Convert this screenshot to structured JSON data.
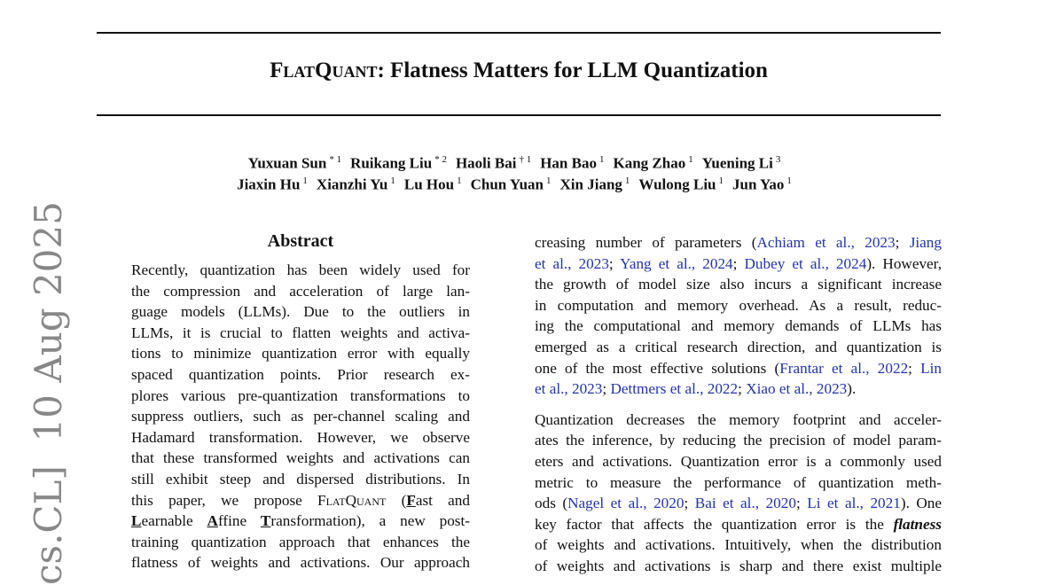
{
  "title": {
    "smallcaps": "FlatQuant",
    "rest": ": Flatness Matters for LLM Quantization"
  },
  "authors": {
    "row1": [
      {
        "name": "Yuxuan Sun",
        "mark": "* 1"
      },
      {
        "name": "Ruikang Liu",
        "mark": "* 2"
      },
      {
        "name": "Haoli Bai",
        "mark": "† 1"
      },
      {
        "name": "Han Bao",
        "mark": "1"
      },
      {
        "name": "Kang Zhao",
        "mark": "1"
      },
      {
        "name": "Yuening Li",
        "mark": "3"
      }
    ],
    "row2": [
      {
        "name": "Jiaxin Hu",
        "mark": "1"
      },
      {
        "name": "Xianzhi Yu",
        "mark": "1"
      },
      {
        "name": "Lu Hou",
        "mark": "1"
      },
      {
        "name": "Chun Yuan",
        "mark": "1"
      },
      {
        "name": "Xin Jiang",
        "mark": "1"
      },
      {
        "name": "Wulong Liu",
        "mark": "1"
      },
      {
        "name": "Jun Yao",
        "mark": "1"
      }
    ]
  },
  "abstract_heading": "Abstract",
  "arxiv_stamp": "cs.CL]  10 Aug 2025",
  "colors": {
    "citation": "#2233aa",
    "stamp": "#888888"
  },
  "left_column": [
    [
      {
        "t": "Recently, quantization has been widely used for"
      }
    ],
    [
      {
        "t": "the compression and acceleration of large lan-"
      }
    ],
    [
      {
        "t": "guage models (LLMs).  Due to the outliers in"
      }
    ],
    [
      {
        "t": "LLMs, it is crucial to flatten weights and activa-"
      }
    ],
    [
      {
        "t": "tions to minimize quantization error with equally"
      }
    ],
    [
      {
        "t": "spaced quantization points.  Prior research ex-"
      }
    ],
    [
      {
        "t": "plores various pre-quantization transformations to"
      }
    ],
    [
      {
        "t": "suppress outliers, such as per-channel scaling and"
      }
    ],
    [
      {
        "t": "Hadamard transformation. However, we observe"
      }
    ],
    [
      {
        "t": "that these transformed weights and activations can"
      }
    ],
    [
      {
        "t": "still exhibit steep and dispersed distributions. In"
      }
    ],
    [
      {
        "t": "this paper, we propose "
      },
      {
        "t": "FlatQuant",
        "s": "sc"
      },
      {
        "t": " ("
      },
      {
        "t": "F",
        "s": "bu"
      },
      {
        "t": "ast and"
      }
    ],
    [
      {
        "t": "L",
        "s": "bu"
      },
      {
        "t": "earnable "
      },
      {
        "t": "A",
        "s": "bu"
      },
      {
        "t": "ffine "
      },
      {
        "t": "T",
        "s": "bu"
      },
      {
        "t": "ransformation), a new post-"
      }
    ],
    [
      {
        "t": "training quantization approach that enhances the"
      }
    ],
    [
      {
        "t": "flatness of weights and activations. Our approach"
      }
    ]
  ],
  "right_column": [
    [
      {
        "t": "creasing number of parameters ("
      },
      {
        "t": "Achiam et al., 2023",
        "s": "cite"
      },
      {
        "t": "; "
      },
      {
        "t": "Jiang",
        "s": "cite"
      }
    ],
    [
      {
        "t": "et al., 2023",
        "s": "cite"
      },
      {
        "t": "; "
      },
      {
        "t": "Yang et al., 2024",
        "s": "cite"
      },
      {
        "t": "; "
      },
      {
        "t": "Dubey et al., 2024",
        "s": "cite"
      },
      {
        "t": "). However,"
      }
    ],
    [
      {
        "t": "the growth of model size also incurs a significant increase"
      }
    ],
    [
      {
        "t": "in computation and memory overhead. As a result, reduc-"
      }
    ],
    [
      {
        "t": "ing the computational and memory demands of LLMs has"
      }
    ],
    [
      {
        "t": "emerged as a critical research direction, and quantization is"
      }
    ],
    [
      {
        "t": "one of the most effective solutions ("
      },
      {
        "t": "Frantar et al., 2022",
        "s": "cite"
      },
      {
        "t": "; "
      },
      {
        "t": "Lin",
        "s": "cite"
      }
    ],
    [
      {
        "t": "et al., 2023",
        "s": "cite"
      },
      {
        "t": "; "
      },
      {
        "t": "Dettmers et al., 2022",
        "s": "cite"
      },
      {
        "t": "; "
      },
      {
        "t": "Xiao et al., 2023",
        "s": "cite"
      },
      {
        "t": ")."
      }
    ],
    "gap",
    [
      {
        "t": "Quantization decreases the memory footprint and acceler-"
      }
    ],
    [
      {
        "t": "ates the inference, by reducing the precision of model param-"
      }
    ],
    [
      {
        "t": "eters and activations. Quantization error is a commonly used"
      }
    ],
    [
      {
        "t": "metric to measure the performance of quantization meth-"
      }
    ],
    [
      {
        "t": "ods ("
      },
      {
        "t": "Nagel et al., 2020",
        "s": "cite"
      },
      {
        "t": "; "
      },
      {
        "t": "Bai et al., 2020",
        "s": "cite"
      },
      {
        "t": "; "
      },
      {
        "t": "Li et al., 2021",
        "s": "cite"
      },
      {
        "t": "). One"
      }
    ],
    [
      {
        "t": "key factor that affects the quantization error is the "
      },
      {
        "t": "flatness",
        "s": "bi"
      }
    ],
    [
      {
        "t": "of weights and activations. Intuitively, when the distribution"
      }
    ],
    [
      {
        "t": "of weights and activations is sharp and there exist multiple"
      }
    ]
  ]
}
